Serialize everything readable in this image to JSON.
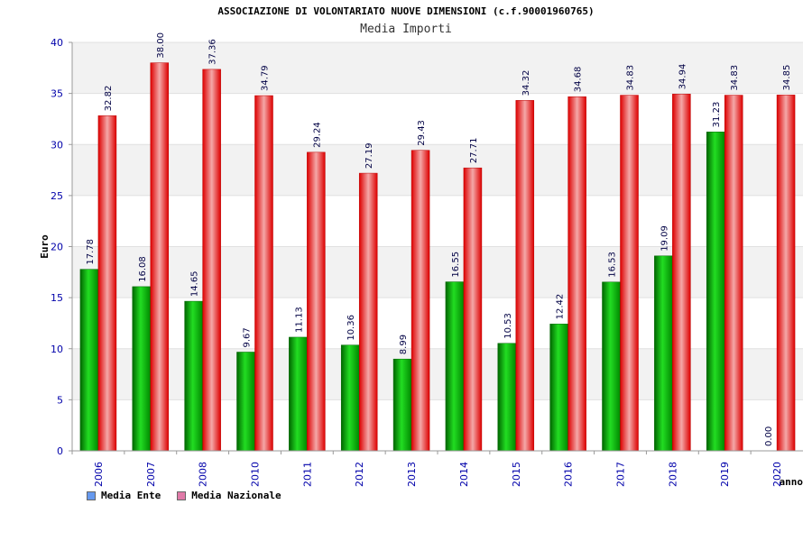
{
  "chart_data": {
    "type": "bar",
    "title": "ASSOCIAZIONE DI VOLONTARIATO NUOVE DIMENSIONI (c.f.90001960765)",
    "subtitle": "Media Importi",
    "xlabel": "anno",
    "ylabel": "Euro",
    "ylim": [
      0,
      40
    ],
    "yticks": [
      "0",
      "5",
      "10",
      "15",
      "20",
      "25",
      "30",
      "35",
      "40"
    ],
    "categories": [
      "2006",
      "2007",
      "2008",
      "2010",
      "2011",
      "2012",
      "2013",
      "2014",
      "2015",
      "2016",
      "2017",
      "2018",
      "2019",
      "2020"
    ],
    "series": [
      {
        "name": "Media Ente",
        "legend_color": "#6699ee",
        "bar_color": "#00c000",
        "values": [
          17.78,
          16.08,
          14.65,
          9.67,
          11.13,
          10.36,
          8.99,
          16.55,
          10.53,
          12.42,
          16.53,
          19.09,
          31.23,
          0.0
        ],
        "labels": [
          "17.78",
          "16.08",
          "14.65",
          "9.67",
          "11.13",
          "10.36",
          "8.99",
          "16.55",
          "10.53",
          "12.42",
          "16.53",
          "19.09",
          "31.23",
          "0.00"
        ]
      },
      {
        "name": "Media Nazionale",
        "legend_color": "#e07aa8",
        "bar_color": "#ff2a2a",
        "values": [
          32.82,
          38.0,
          37.36,
          34.79,
          29.24,
          27.19,
          29.43,
          27.71,
          34.32,
          34.68,
          34.83,
          34.94,
          34.83,
          34.85
        ],
        "labels": [
          "32.82",
          "38.00",
          "37.36",
          "34.79",
          "29.24",
          "27.19",
          "29.43",
          "27.71",
          "34.32",
          "34.68",
          "34.83",
          "34.94",
          "34.83",
          "34.85"
        ]
      }
    ],
    "grid": true,
    "legend_position": "bottom-left"
  }
}
